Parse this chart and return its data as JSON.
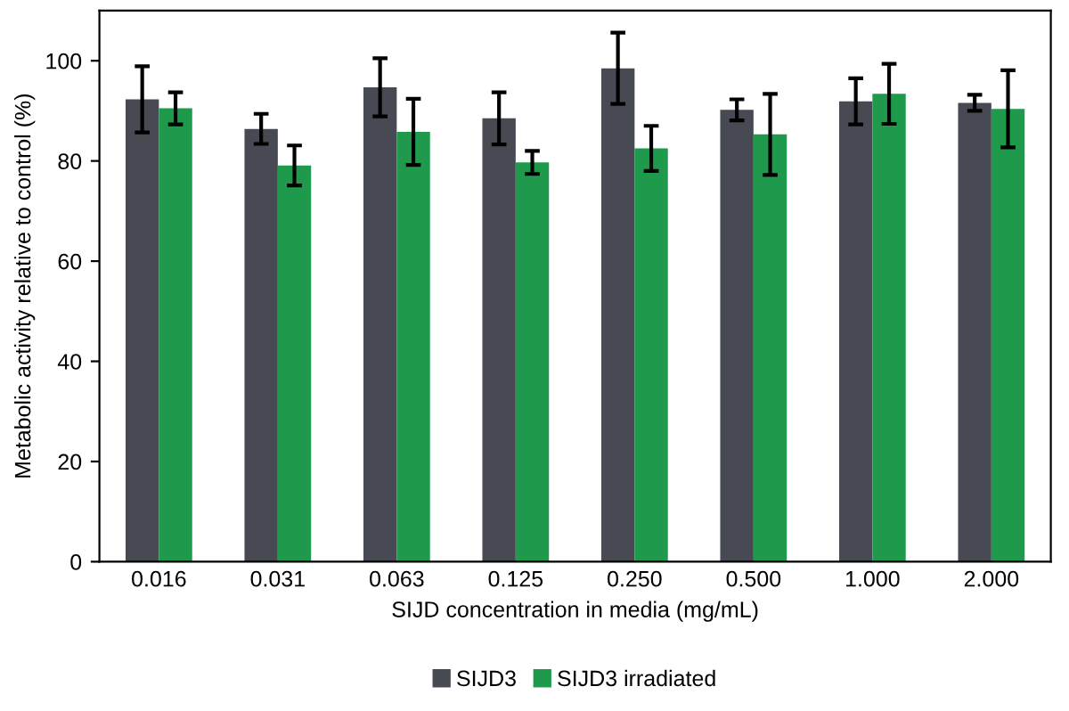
{
  "chart_data": {
    "type": "bar",
    "xlabel": "SIJD concentration in media (mg/mL)",
    "ylabel": "Metabolic activity relative to control (%)",
    "categories": [
      "0.016",
      "0.031",
      "0.063",
      "0.125",
      "0.250",
      "0.500",
      "1.000",
      "2.000"
    ],
    "series": [
      {
        "name": "SIJD3",
        "color": "#474a52",
        "values": [
          92.3,
          86.4,
          94.7,
          88.5,
          98.5,
          90.2,
          91.9,
          91.6
        ],
        "errors": [
          6.6,
          3.0,
          5.8,
          5.2,
          7.1,
          2.1,
          4.6,
          1.6
        ]
      },
      {
        "name": "SIJD3 irradiated",
        "color": "#1f9a4c",
        "values": [
          90.5,
          79.1,
          85.8,
          79.7,
          82.5,
          85.3,
          93.4,
          90.4
        ],
        "errors": [
          3.2,
          4.0,
          6.6,
          2.3,
          4.5,
          8.1,
          6.0,
          7.7
        ]
      }
    ],
    "ylim": [
      0,
      110
    ],
    "yticks": [
      0,
      20,
      40,
      60,
      80,
      100
    ],
    "grid": false,
    "legend": "bottom"
  }
}
